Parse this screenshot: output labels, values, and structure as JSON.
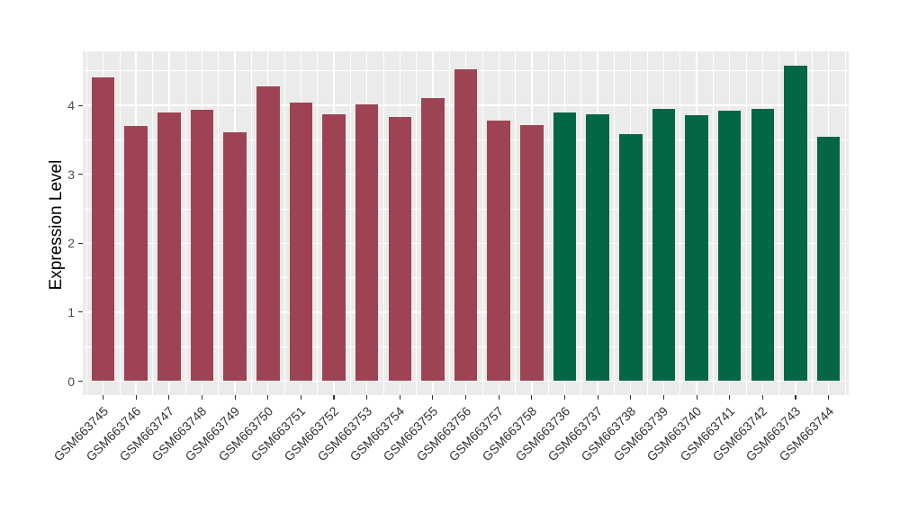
{
  "chart_data": {
    "type": "bar",
    "title": "",
    "xlabel": "",
    "ylabel": "Expression Level",
    "ylim": [
      0,
      4.78
    ],
    "yticks": [
      0,
      1,
      2,
      3,
      4
    ],
    "grid": "on",
    "legend": "none",
    "panel_background": "#EBEBEB",
    "gridline_color": "#FFFFFF",
    "tick_color": "#333333",
    "tick_label_color": "#4D4D4D",
    "group_colors": [
      "#9D4353",
      "#036647"
    ],
    "categories": [
      "GSM663745",
      "GSM663746",
      "GSM663747",
      "GSM663748",
      "GSM663749",
      "GSM663750",
      "GSM663751",
      "GSM663752",
      "GSM663753",
      "GSM663754",
      "GSM663755",
      "GSM663756",
      "GSM663757",
      "GSM663758",
      "GSM663736",
      "GSM663737",
      "GSM663738",
      "GSM663739",
      "GSM663740",
      "GSM663741",
      "GSM663742",
      "GSM663743",
      "GSM663744"
    ],
    "bar_groups": [
      0,
      0,
      0,
      0,
      0,
      0,
      0,
      0,
      0,
      0,
      0,
      0,
      0,
      0,
      1,
      1,
      1,
      1,
      1,
      1,
      1,
      1,
      1
    ],
    "series": [
      {
        "name": "Expression Level",
        "values": [
          4.4,
          3.7,
          3.9,
          3.93,
          3.61,
          4.28,
          4.04,
          3.87,
          4.01,
          3.83,
          4.11,
          4.53,
          3.78,
          3.71,
          3.9,
          3.87,
          3.58,
          3.95,
          3.86,
          3.92,
          3.95,
          4.57,
          3.55
        ]
      }
    ]
  }
}
